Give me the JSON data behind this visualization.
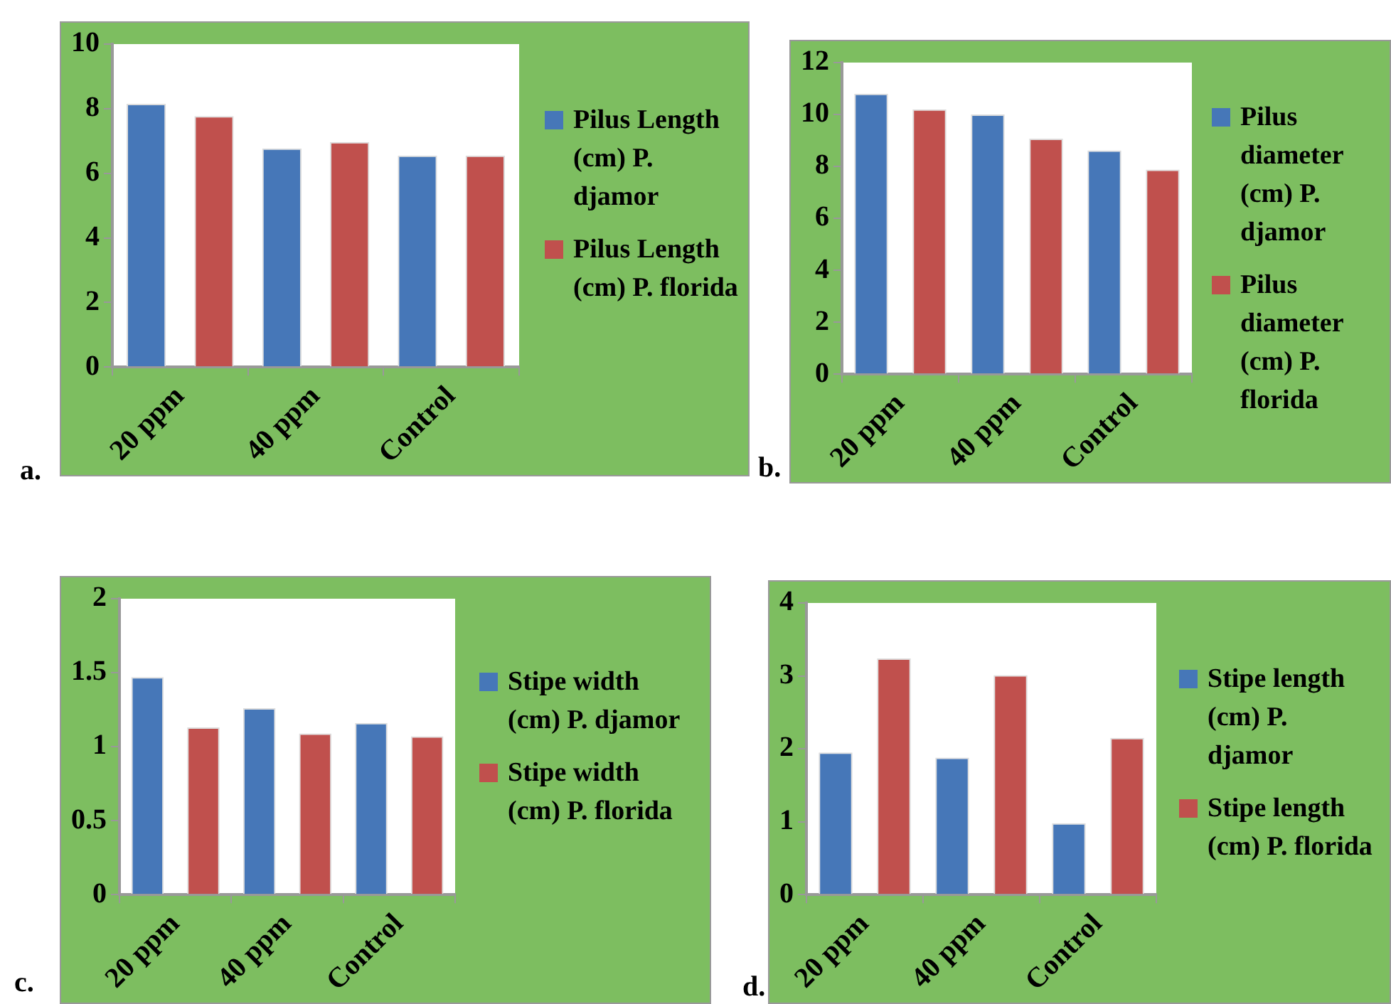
{
  "chart_data": [
    {
      "type": "bar",
      "categories": [
        "20 ppm",
        "40 ppm",
        "Control"
      ],
      "series": [
        {
          "name": "Pilus Length (cm) P. djamor",
          "color": "#4677b8",
          "values": [
            8.15,
            6.77,
            6.55
          ]
        },
        {
          "name": "Pilus Length (cm) P. florida",
          "color": "#c0504d",
          "values": [
            7.77,
            6.97,
            6.55
          ]
        }
      ],
      "ylim": [
        0,
        10
      ],
      "yticks": [
        0,
        2,
        4,
        6,
        8,
        10
      ],
      "grid": false,
      "legend": "right",
      "annotations": [
        "a."
      ]
    },
    {
      "type": "bar",
      "categories": [
        "20 ppm",
        "40 ppm",
        "Control"
      ],
      "series": [
        {
          "name": "Pilus diameter (cm) P. djamor",
          "color": "#4677b8",
          "values": [
            10.8,
            10.0,
            8.62
          ]
        },
        {
          "name": "Pilus diameter (cm) P. florida",
          "color": "#c0504d",
          "values": [
            10.2,
            9.07,
            7.88
          ]
        }
      ],
      "ylim": [
        0,
        12
      ],
      "yticks": [
        0,
        2,
        4,
        6,
        8,
        10,
        12
      ],
      "grid": false,
      "legend": "right",
      "annotations": [
        "b."
      ]
    },
    {
      "type": "bar",
      "categories": [
        "20 ppm",
        "40 ppm",
        "Control"
      ],
      "series": [
        {
          "name": "Stipe width (cm)  P. djamor",
          "color": "#4677b8",
          "values": [
            1.47,
            1.26,
            1.16
          ]
        },
        {
          "name": "Stipe width (cm)  P. florida",
          "color": "#c0504d",
          "values": [
            1.13,
            1.09,
            1.07
          ]
        }
      ],
      "ylim": [
        0,
        2
      ],
      "yticks": [
        0,
        0.5,
        1,
        1.5,
        2
      ],
      "grid": false,
      "legend": "right",
      "annotations": [
        "c."
      ]
    },
    {
      "type": "bar",
      "categories": [
        "20 ppm",
        "40 ppm",
        "Control"
      ],
      "series": [
        {
          "name": "Stipe length (cm) P. djamor",
          "color": "#4677b8",
          "values": [
            1.95,
            1.88,
            0.98
          ]
        },
        {
          "name": "Stipe length (cm) P. florida",
          "color": "#c0504d",
          "values": [
            3.24,
            3.01,
            2.15
          ]
        }
      ],
      "ylim": [
        0,
        4
      ],
      "yticks": [
        0,
        1,
        2,
        3,
        4
      ],
      "grid": false,
      "legend": "right",
      "annotations": [
        "d."
      ]
    }
  ]
}
